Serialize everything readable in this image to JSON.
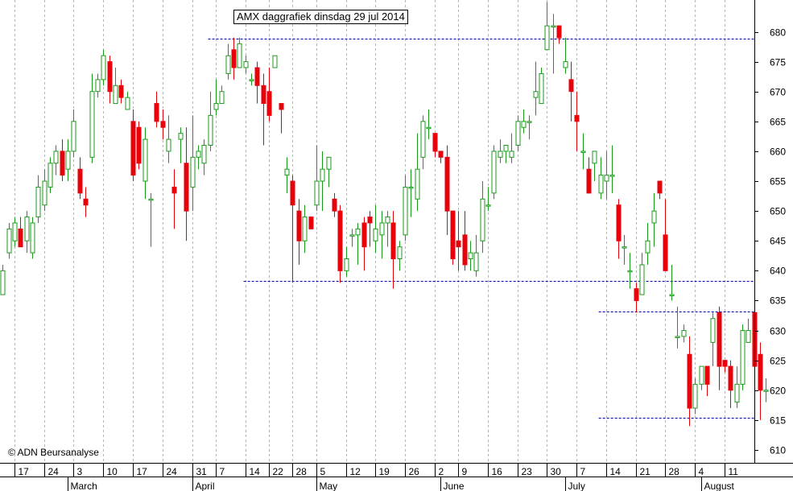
{
  "title": "AMX daggrafiek dinsdag 29 jul 2014",
  "copyright": "© ADN Beursanalyse",
  "chart_data": {
    "type": "candlestick",
    "ylim": [
      605,
      685
    ],
    "y_ticks": [
      610,
      615,
      620,
      625,
      630,
      635,
      640,
      645,
      650,
      655,
      660,
      665,
      670,
      675,
      680
    ],
    "grid": "vertical dashed at weekly ticks",
    "colors": {
      "up": "#1a9a1a",
      "down": "#e8000b",
      "level_line": "#0000aa",
      "grid": "#b4b4b4"
    },
    "x_day_labels": [
      "17",
      "24",
      "3",
      "10",
      "17",
      "24",
      "31",
      "7",
      "14",
      "22",
      "28",
      "5",
      "12",
      "19",
      "26",
      "2",
      "9",
      "16",
      "23",
      "30",
      "7",
      "14",
      "21",
      "28",
      "4",
      "11"
    ],
    "month_labels": [
      "March",
      "April",
      "May",
      "June",
      "July",
      "August"
    ],
    "levels": [
      {
        "y": 678.8,
        "from_index": 35,
        "to_index": 120
      },
      {
        "y": 638.3,
        "from_index": 41,
        "to_index": 120
      },
      {
        "y": 633.2,
        "from_index": 101,
        "to_index": 120
      },
      {
        "y": 615.4,
        "from_index": 101,
        "to_index": 120
      }
    ],
    "candles": [
      [
        636,
        640,
        641,
        637
      ],
      [
        643,
        647,
        648,
        642
      ],
      [
        645,
        648,
        649,
        644
      ],
      [
        647,
        644,
        649,
        644
      ],
      [
        645,
        649,
        650,
        643
      ],
      [
        643,
        648,
        649,
        642
      ],
      [
        649,
        654,
        656,
        648
      ],
      [
        651,
        655,
        657,
        650
      ],
      [
        654,
        658,
        659,
        653
      ],
      [
        658,
        660,
        661,
        656
      ],
      [
        660,
        656,
        662,
        655
      ],
      [
        657,
        660,
        662,
        655
      ],
      [
        660,
        665,
        667,
        659
      ],
      [
        657,
        653,
        659,
        652
      ],
      [
        652,
        651,
        654,
        649
      ],
      [
        659,
        670,
        673,
        658
      ],
      [
        670,
        672,
        673,
        669
      ],
      [
        672,
        676,
        677,
        671
      ],
      [
        675,
        670,
        676,
        668
      ],
      [
        668,
        671,
        674,
        669
      ],
      [
        671,
        669,
        672,
        668
      ],
      [
        667,
        669,
        670,
        667
      ],
      [
        665,
        656,
        667,
        655
      ],
      [
        664,
        658,
        665,
        657
      ],
      [
        655,
        662,
        664,
        652
      ],
      [
        652,
        652,
        653,
        644
      ],
      [
        668,
        665,
        670,
        664
      ],
      [
        665,
        664,
        667,
        662
      ],
      [
        660,
        662,
        666,
        658
      ],
      [
        654,
        653,
        657,
        647
      ],
      [
        662,
        663,
        664,
        658
      ],
      [
        658,
        650,
        664,
        645
      ],
      [
        654,
        659,
        666,
        650
      ],
      [
        659,
        660,
        661,
        657
      ],
      [
        658,
        661,
        662,
        656
      ],
      [
        661,
        666,
        670,
        660
      ],
      [
        667,
        668,
        672,
        666
      ],
      [
        668,
        670,
        671,
        668
      ],
      [
        673,
        676,
        678,
        672
      ],
      [
        677,
        674,
        679,
        672
      ],
      [
        674,
        678,
        679,
        674
      ],
      [
        674,
        675,
        676,
        673
      ],
      [
        672,
        672,
        673,
        671
      ],
      [
        674,
        671,
        675,
        668
      ],
      [
        671,
        668,
        673,
        661
      ],
      [
        670,
        666,
        674,
        665
      ],
      [
        674,
        676,
        676,
        674
      ],
      [
        668,
        667,
        668,
        663
      ],
      [
        656,
        657,
        659,
        653
      ],
      [
        655,
        651,
        656,
        638
      ],
      [
        650,
        645,
        652,
        641
      ],
      [
        645,
        649,
        651,
        643
      ],
      [
        649,
        647,
        649,
        647
      ],
      [
        651,
        655,
        661,
        650
      ],
      [
        655,
        657,
        660,
        650
      ],
      [
        657,
        659,
        659,
        654
      ],
      [
        652,
        650,
        653,
        649
      ],
      [
        650,
        640,
        651,
        638
      ],
      [
        640,
        642,
        644,
        639
      ],
      [
        646,
        646,
        647,
        644
      ],
      [
        646,
        647,
        648,
        641
      ],
      [
        648,
        644,
        649,
        640
      ],
      [
        649,
        648,
        650,
        644
      ],
      [
        645,
        647,
        651,
        643
      ],
      [
        646,
        648,
        650,
        642
      ],
      [
        648,
        649,
        650,
        644
      ],
      [
        648,
        642,
        650,
        637
      ],
      [
        642,
        644,
        645,
        640
      ],
      [
        646,
        654,
        656,
        645
      ],
      [
        654,
        654,
        657,
        649
      ],
      [
        652,
        657,
        663,
        650
      ],
      [
        659,
        665,
        666,
        657
      ],
      [
        664,
        664,
        667,
        662
      ],
      [
        663,
        660,
        663,
        659
      ],
      [
        660,
        659,
        659,
        658
      ],
      [
        659,
        650,
        661,
        646
      ],
      [
        650,
        642,
        649,
        641
      ],
      [
        645,
        644,
        650,
        640
      ],
      [
        646,
        641,
        650,
        640
      ],
      [
        642,
        643,
        645,
        640
      ],
      [
        640,
        643,
        646,
        639
      ],
      [
        645,
        652,
        655,
        643
      ],
      [
        651,
        651,
        654,
        650
      ],
      [
        653,
        660,
        661,
        652
      ],
      [
        659,
        660,
        662,
        658
      ],
      [
        660,
        661,
        661,
        658
      ],
      [
        659,
        660,
        663,
        658
      ],
      [
        661,
        665,
        666,
        660
      ],
      [
        664,
        665,
        667,
        663
      ],
      [
        665,
        665,
        666,
        662
      ],
      [
        669,
        670,
        675,
        666
      ],
      [
        668,
        673,
        674,
        668
      ],
      [
        677,
        681,
        685,
        677
      ],
      [
        681,
        681,
        683,
        673
      ],
      [
        681,
        679,
        680,
        678
      ],
      [
        674,
        675,
        679,
        673
      ],
      [
        672,
        670,
        675,
        665
      ],
      [
        666,
        665,
        670,
        660
      ],
      [
        660,
        660,
        663,
        657
      ],
      [
        657,
        653,
        659,
        653
      ],
      [
        658,
        660,
        660,
        655
      ],
      [
        653,
        656,
        659,
        652
      ],
      [
        655,
        656,
        660,
        652
      ],
      [
        656,
        656,
        661,
        653
      ],
      [
        651,
        645,
        652,
        642
      ],
      [
        644,
        644,
        646,
        641
      ],
      [
        640,
        640,
        643,
        637
      ],
      [
        637,
        635,
        638,
        633
      ],
      [
        636,
        641,
        643,
        636
      ],
      [
        643,
        645,
        648,
        641
      ],
      [
        648,
        650,
        653,
        644
      ],
      [
        655,
        653,
        655,
        652
      ],
      [
        646,
        640,
        652,
        640
      ],
      [
        636,
        636,
        641,
        635
      ],
      [
        629,
        629,
        634,
        627
      ],
      [
        629,
        630,
        631,
        628
      ],
      [
        626,
        617,
        629,
        614
      ],
      [
        617,
        621,
        622,
        616
      ],
      [
        621,
        624,
        624,
        620
      ],
      [
        624,
        621,
        624,
        619
      ],
      [
        628,
        632,
        633,
        624
      ],
      [
        633,
        624,
        634,
        620
      ],
      [
        625,
        624,
        625,
        623
      ],
      [
        624,
        620,
        625,
        617
      ],
      [
        618,
        621,
        624,
        617
      ],
      [
        621,
        630,
        631,
        620
      ],
      [
        628,
        630,
        632,
        628
      ],
      [
        633,
        624,
        634,
        623
      ],
      [
        626,
        620,
        628,
        615
      ],
      [
        620,
        620,
        622,
        618
      ]
    ]
  }
}
